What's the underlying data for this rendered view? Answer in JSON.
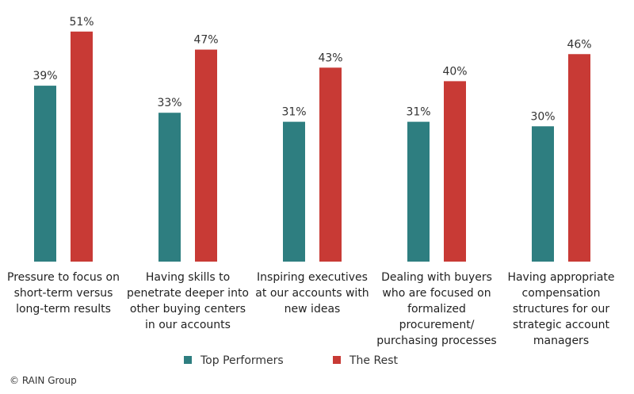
{
  "chart_data": {
    "type": "bar",
    "categories": [
      "Pressure to focus on short-term versus long-term results",
      "Having skills to penetrate deeper into other buying centers in our accounts",
      "Inspiring executives at our accounts with new ideas",
      "Dealing with buyers who are focused on formalized procurement/ purchasing processes",
      "Having appropriate compensation structures for our strategic account managers"
    ],
    "series": [
      {
        "name": "Top Performers",
        "color": "#2e7e80",
        "values": [
          39,
          33,
          31,
          31,
          30
        ],
        "value_labels": [
          "39%",
          "33%",
          "31%",
          "31%",
          "30%"
        ]
      },
      {
        "name": "The Rest",
        "color": "#c83a35",
        "values": [
          51,
          47,
          43,
          40,
          46
        ],
        "value_labels": [
          "51%",
          "47%",
          "43%",
          "40%",
          "46%"
        ]
      }
    ],
    "source": "© RAIN Group"
  }
}
